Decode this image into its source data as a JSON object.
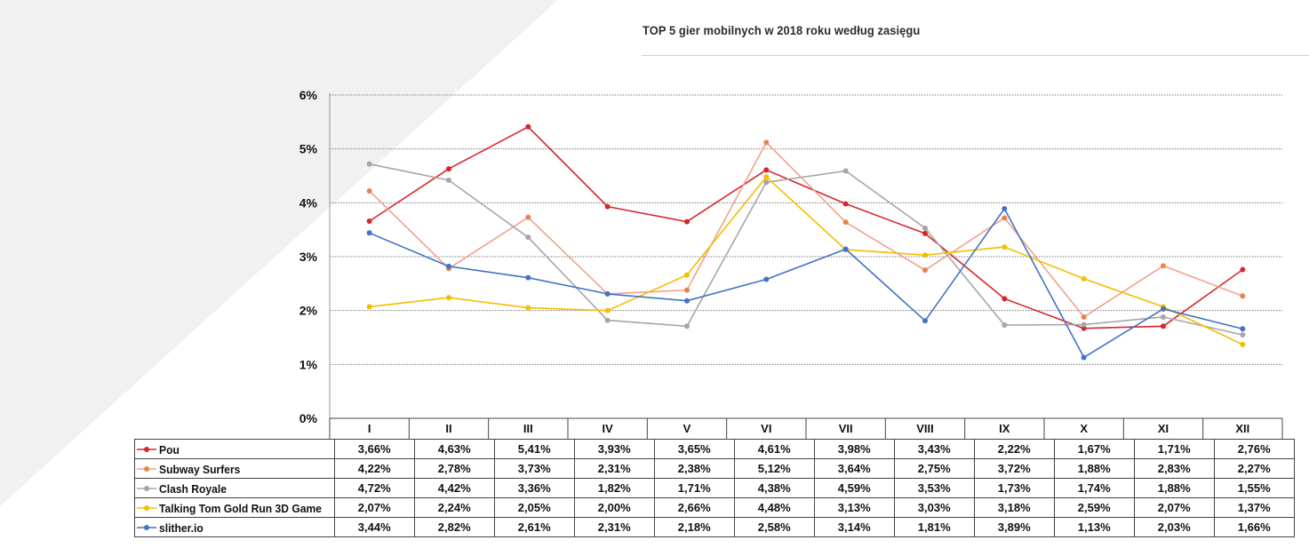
{
  "chart_data": {
    "type": "line",
    "title": "TOP 5 gier mobilnych w 2018 roku według zasięgu",
    "categories": [
      "I",
      "II",
      "III",
      "IV",
      "V",
      "VI",
      "VII",
      "VIII",
      "IX",
      "X",
      "XI",
      "XII"
    ],
    "ylim": [
      0,
      6
    ],
    "yticks": [
      0,
      1,
      2,
      3,
      4,
      5,
      6
    ],
    "ytick_labels": [
      "0%",
      "1%",
      "2%",
      "3%",
      "4%",
      "5%",
      "6%"
    ],
    "grid": true,
    "legend": "table-below",
    "series": [
      {
        "name": "Pou",
        "color": "#d7262b",
        "values": [
          3.66,
          4.63,
          5.41,
          3.93,
          3.65,
          4.61,
          3.98,
          3.43,
          2.22,
          1.67,
          1.71,
          2.76
        ],
        "labels": [
          "3,66%",
          "4,63%",
          "5,41%",
          "3,93%",
          "3,65%",
          "4,61%",
          "3,98%",
          "3,43%",
          "2,22%",
          "1,67%",
          "1,71%",
          "2,76%"
        ]
      },
      {
        "name": "Subway Surfers",
        "color": "#f2a18c",
        "marker_color": "#e8834f",
        "values": [
          4.22,
          2.78,
          3.73,
          2.31,
          2.38,
          5.12,
          3.64,
          2.75,
          3.72,
          1.88,
          2.83,
          2.27
        ],
        "labels": [
          "4,22%",
          "2,78%",
          "3,73%",
          "2,31%",
          "2,38%",
          "5,12%",
          "3,64%",
          "2,75%",
          "3,72%",
          "1,88%",
          "2,83%",
          "2,27%"
        ]
      },
      {
        "name": "Clash Royale",
        "color": "#a6a6a6",
        "values": [
          4.72,
          4.42,
          3.36,
          1.82,
          1.71,
          4.38,
          4.59,
          3.53,
          1.73,
          1.74,
          1.88,
          1.55
        ],
        "labels": [
          "4,72%",
          "4,42%",
          "3,36%",
          "1,82%",
          "1,71%",
          "4,38%",
          "4,59%",
          "3,53%",
          "1,73%",
          "1,74%",
          "1,88%",
          "1,55%"
        ]
      },
      {
        "name": "Talking Tom Gold Run 3D Game",
        "color": "#f5bd00",
        "values": [
          2.07,
          2.24,
          2.05,
          2.0,
          2.66,
          4.48,
          3.13,
          3.03,
          3.18,
          2.59,
          2.07,
          1.37
        ],
        "labels": [
          "2,07%",
          "2,24%",
          "2,05%",
          "2,00%",
          "2,66%",
          "4,48%",
          "3,13%",
          "3,03%",
          "3,18%",
          "2,59%",
          "2,07%",
          "1,37%"
        ]
      },
      {
        "name": "slither.io",
        "color": "#4472c4",
        "values": [
          3.44,
          2.82,
          2.61,
          2.31,
          2.18,
          2.58,
          3.14,
          1.81,
          3.89,
          1.13,
          2.03,
          1.66
        ],
        "labels": [
          "3,44%",
          "2,82%",
          "2,61%",
          "2,31%",
          "2,18%",
          "2,58%",
          "3,14%",
          "1,81%",
          "3,89%",
          "1,13%",
          "2,03%",
          "1,66%"
        ]
      }
    ]
  }
}
